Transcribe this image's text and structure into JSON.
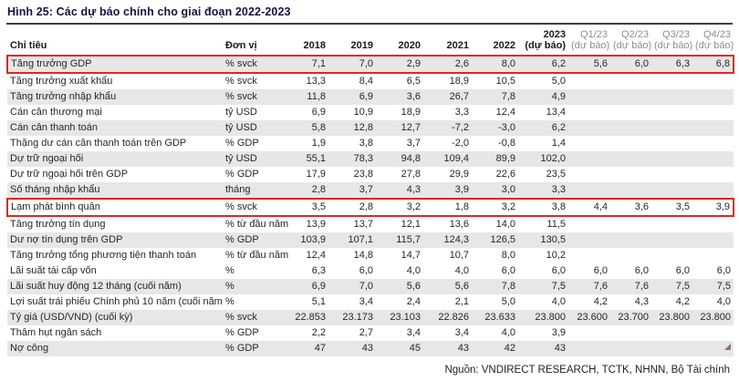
{
  "title": "Hình 25: Các dự báo chính cho giai đoạn 2022-2023",
  "source": "Nguồn: VNDIRECT RESEARCH, TCTK, NHNN, Bộ Tài chính",
  "colors": {
    "accent_red": "#e4251f",
    "row_stripe_gray": "#e7e7e7",
    "title_navy": "#15153f",
    "muted_header_gray": "#8f8f8f"
  },
  "chart_data": {
    "type": "table",
    "title": "Hình 25: Các dự báo chính cho giai đoạn 2022-2023",
    "columns": [
      "Chỉ tiêu",
      "Đơn vị",
      "2018",
      "2019",
      "2020",
      "2021",
      "2022",
      "2023 (dự báo)",
      "Q1/23 (dự báo)",
      "Q2/23 (dự báo)",
      "Q3/23 (dự báo)",
      "Q4/23 (dự báo)"
    ]
  },
  "table": {
    "label_header": "Chỉ tiêu",
    "unit_header": "Đơn vị",
    "year_headers": [
      "2018",
      "2019",
      "2020",
      "2021",
      "2022"
    ],
    "forecast_header": {
      "year": "2023",
      "note": "(dự báo)"
    },
    "quarter_headers": [
      {
        "q": "Q1/23",
        "note": "(dự báo)"
      },
      {
        "q": "Q2/23",
        "note": "(dự báo)"
      },
      {
        "q": "Q3/23",
        "note": "(dự báo)"
      },
      {
        "q": "Q4/23",
        "note": "(dự báo)"
      }
    ],
    "rows": [
      {
        "label": "Tăng trưởng GDP",
        "unit": "% svck",
        "values": [
          "7,1",
          "7,0",
          "2,9",
          "2,6",
          "8,0",
          "6,2",
          "5,6",
          "6,0",
          "6,3",
          "6,8"
        ],
        "shaded": true,
        "highlighted": true
      },
      {
        "label": "Tăng trưởng xuất khẩu",
        "unit": "% svck",
        "values": [
          "13,3",
          "8,4",
          "6,5",
          "18,9",
          "10,5",
          "5,0",
          "",
          "",
          "",
          ""
        ],
        "shaded": false,
        "highlighted": false
      },
      {
        "label": "Tăng trưởng nhập khẩu",
        "unit": "% svck",
        "values": [
          "11,8",
          "6,9",
          "3,6",
          "26,7",
          "7,8",
          "4,9",
          "",
          "",
          "",
          ""
        ],
        "shaded": true,
        "highlighted": false
      },
      {
        "label": "Cán cân thương mại",
        "unit": "tỷ USD",
        "values": [
          "6,9",
          "10,9",
          "18,9",
          "3,3",
          "12,4",
          "13,4",
          "",
          "",
          "",
          ""
        ],
        "shaded": false,
        "highlighted": false
      },
      {
        "label": "Cán cân thanh toán",
        "unit": "tỷ USD",
        "values": [
          "5,8",
          "12,8",
          "12,7",
          "-7,2",
          "-3,0",
          "6,2",
          "",
          "",
          "",
          ""
        ],
        "shaded": true,
        "highlighted": false
      },
      {
        "label": "Thặng dư cán cân thanh toán trên GDP",
        "unit": "% GDP",
        "values": [
          "1,9",
          "3,8",
          "3,7",
          "-2,0",
          "-0,8",
          "1,4",
          "",
          "",
          "",
          ""
        ],
        "shaded": false,
        "highlighted": false
      },
      {
        "label": "Dự trữ ngoại hối",
        "unit": "tỷ USD",
        "values": [
          "55,1",
          "78,3",
          "94,8",
          "109,4",
          "89,9",
          "102,0",
          "",
          "",
          "",
          ""
        ],
        "shaded": true,
        "highlighted": false
      },
      {
        "label": "Dự trữ ngoại hối trên GDP",
        "unit": "% GDP",
        "values": [
          "17,9",
          "23,8",
          "27,8",
          "29,9",
          "22,6",
          "23,5",
          "",
          "",
          "",
          ""
        ],
        "shaded": false,
        "highlighted": false
      },
      {
        "label": "Số tháng nhập khẩu",
        "unit": "tháng",
        "values": [
          "2,8",
          "3,7",
          "4,3",
          "3,9",
          "3,0",
          "3,3",
          "",
          "",
          "",
          ""
        ],
        "shaded": true,
        "highlighted": false
      },
      {
        "label": "Lạm phát bình quân",
        "unit": "% svck",
        "values": [
          "3,5",
          "2,8",
          "3,2",
          "1,8",
          "3,2",
          "3,8",
          "4,4",
          "3,6",
          "3,5",
          "3,9"
        ],
        "shaded": false,
        "highlighted": true
      },
      {
        "label": "Tăng trưởng tín dụng",
        "unit": "% từ đầu năm",
        "values": [
          "13,9",
          "13,7",
          "12,1",
          "13,6",
          "14,0",
          "11,5",
          "",
          "",
          "",
          ""
        ],
        "shaded": false,
        "highlighted": false
      },
      {
        "label": "Dư nợ tín dụng trên GDP",
        "unit": "% GDP",
        "values": [
          "103,9",
          "107,1",
          "115,7",
          "124,3",
          "126,5",
          "130,5",
          "",
          "",
          "",
          ""
        ],
        "shaded": true,
        "highlighted": false
      },
      {
        "label": "Tăng trưởng tổng phương tiện thanh toán",
        "unit": "% từ đầu năm",
        "values": [
          "12,4",
          "14,8",
          "14,7",
          "10,7",
          "8,0",
          "10,2",
          "",
          "",
          "",
          ""
        ],
        "shaded": false,
        "highlighted": false
      },
      {
        "label": "Lãi suất tái cấp vốn",
        "unit": "%",
        "values": [
          "6,3",
          "6,0",
          "4,0",
          "4,0",
          "6,0",
          "6,0",
          "6,0",
          "6,0",
          "6,0",
          "6,0"
        ],
        "shaded": false,
        "highlighted": false
      },
      {
        "label": "Lãi suất huy động 12 tháng (cuối năm)",
        "unit": "%",
        "values": [
          "6,9",
          "7,0",
          "5,6",
          "5,6",
          "7,8",
          "7,5",
          "7,6",
          "7,6",
          "7,5",
          "7,5"
        ],
        "shaded": true,
        "highlighted": false
      },
      {
        "label": "Lợi suất trái phiếu Chính phủ 10 năm (cuối năm)",
        "unit": "%",
        "values": [
          "5,1",
          "3,4",
          "2,4",
          "2,1",
          "5,0",
          "4,0",
          "4,2",
          "4,3",
          "4,2",
          "4,0"
        ],
        "shaded": false,
        "highlighted": false
      },
      {
        "label": "Tỷ giá (USD/VND) (cuối kỳ)",
        "unit": "% svck",
        "values": [
          "22.853",
          "23.173",
          "23.103",
          "22.826",
          "23.633",
          "23.800",
          "23.600",
          "23.700",
          "23.800",
          "23.800"
        ],
        "shaded": true,
        "highlighted": false
      },
      {
        "label": "Thâm hụt ngân sách",
        "unit": "% GDP",
        "values": [
          "2,2",
          "2,7",
          "3,4",
          "3,4",
          "4,0",
          "3,9",
          "",
          "",
          "",
          ""
        ],
        "shaded": false,
        "highlighted": false
      },
      {
        "label": "Nợ công",
        "unit": "% GDP",
        "values": [
          "47",
          "43",
          "45",
          "43",
          "42",
          "43",
          "",
          "",
          "",
          ""
        ],
        "shaded": true,
        "highlighted": false
      }
    ]
  }
}
